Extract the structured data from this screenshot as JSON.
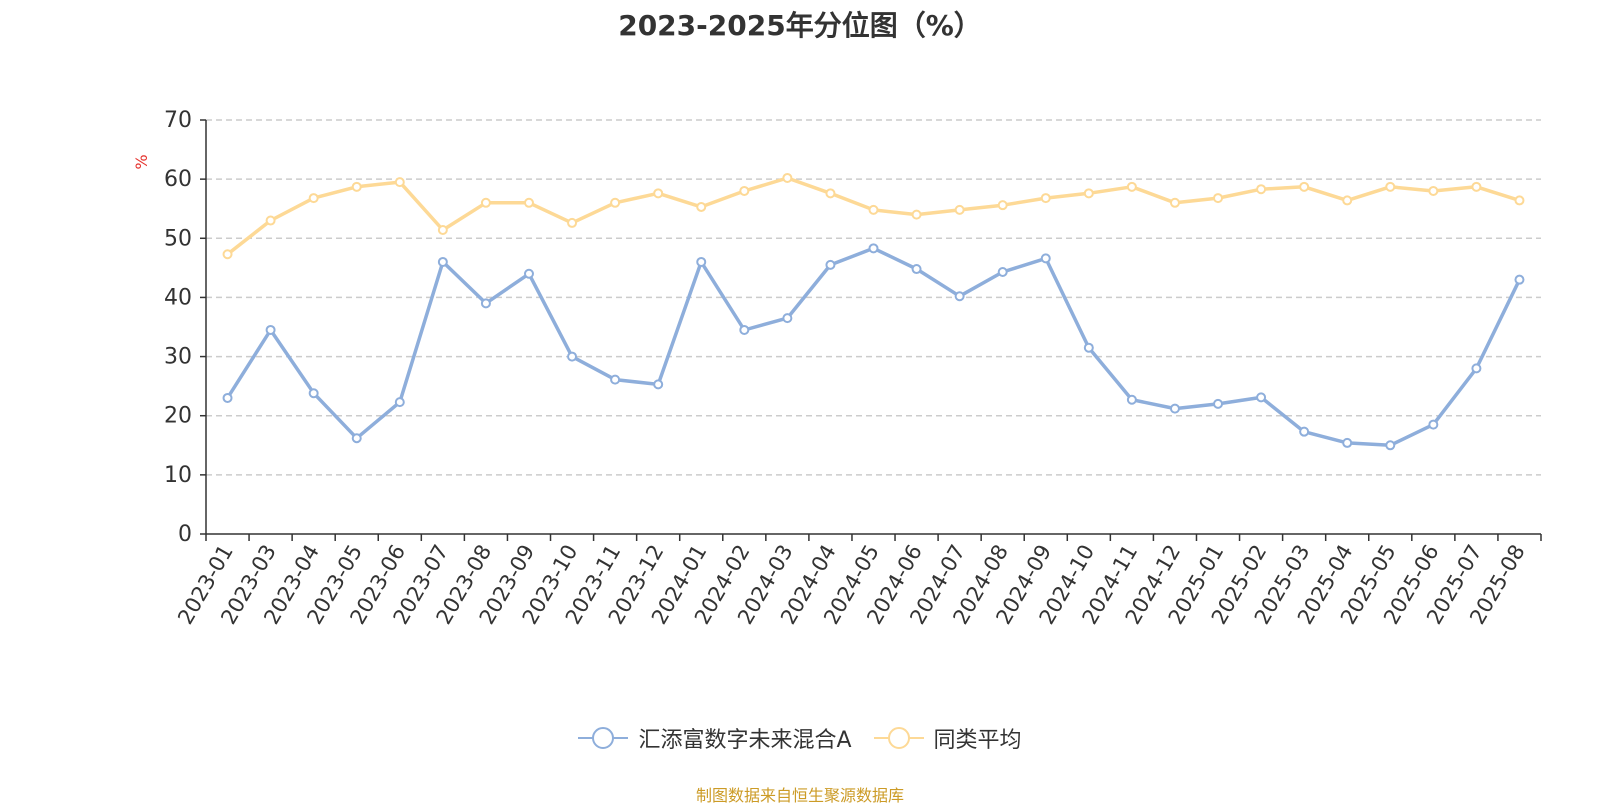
{
  "chart_data": {
    "type": "line",
    "title": "2023-2025年分位图（%）",
    "ylabel": "%",
    "ylim": [
      0,
      70
    ],
    "yticks": [
      0,
      10,
      20,
      30,
      40,
      50,
      60,
      70
    ],
    "grid": "horizontal-dashed",
    "categories": [
      "2023-01",
      "2023-03",
      "2023-04",
      "2023-05",
      "2023-06",
      "2023-07",
      "2023-08",
      "2023-09",
      "2023-10",
      "2023-11",
      "2023-12",
      "2024-01",
      "2024-02",
      "2024-03",
      "2024-04",
      "2024-05",
      "2024-06",
      "2024-07",
      "2024-08",
      "2024-09",
      "2024-10",
      "2024-11",
      "2024-12",
      "2025-01",
      "2025-02",
      "2025-03",
      "2025-04",
      "2025-05",
      "2025-06",
      "2025-07",
      "2025-08"
    ],
    "series": [
      {
        "name": "汇添富数字未来混合A",
        "color": "#8eaedb",
        "values": [
          23,
          34.5,
          23.8,
          16.2,
          22.3,
          46,
          39,
          44,
          30,
          26.1,
          25.3,
          46,
          34.5,
          36.5,
          45.5,
          48.3,
          44.8,
          40.2,
          44.3,
          46.6,
          31.5,
          22.7,
          21.2,
          22,
          23.1,
          17.3,
          15.4,
          15,
          18.5,
          28,
          43
        ]
      },
      {
        "name": "同类平均",
        "color": "#fdd996",
        "values": [
          47.3,
          53,
          56.8,
          58.7,
          59.5,
          51.4,
          56,
          56,
          52.6,
          56,
          57.6,
          55.3,
          58,
          60.2,
          57.6,
          54.8,
          54,
          54.8,
          55.6,
          56.8,
          57.6,
          58.7,
          56,
          56.8,
          58.3,
          58.7,
          56.4,
          58.7,
          58,
          58.7,
          56.4
        ]
      }
    ],
    "legend_position": "bottom-center"
  },
  "source_note": "制图数据来自恒生聚源数据库",
  "source_color": "#cc9b26",
  "ylabel_color": "#e5322d"
}
